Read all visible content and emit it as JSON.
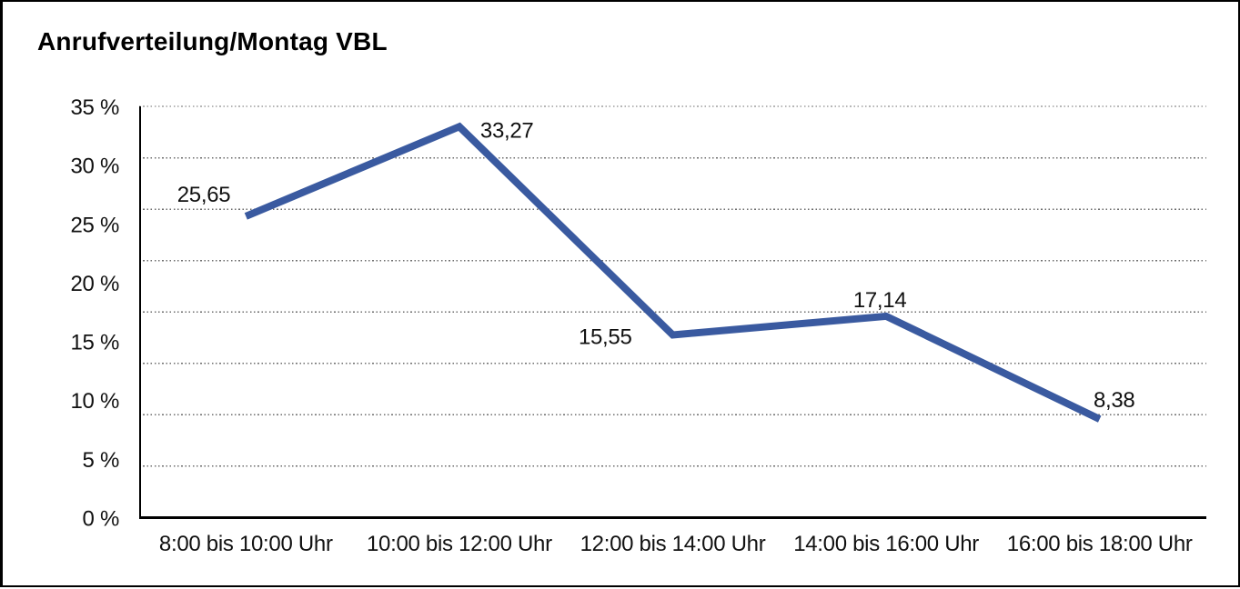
{
  "chart_data": {
    "type": "line",
    "title": "Anrufverteilung/Montag VBL",
    "categories": [
      "8:00 bis 10:00 Uhr",
      "10:00 bis 12:00 Uhr",
      "12:00 bis 14:00 Uhr",
      "14:00 bis 16:00 Uhr",
      "16:00 bis 18:00 Uhr"
    ],
    "series": [
      {
        "name": "Montag VBL",
        "values": [
          25.65,
          33.27,
          15.55,
          17.14,
          8.38
        ],
        "value_labels": [
          "25,65",
          "33,27",
          "15,55",
          "17,14",
          "8,38"
        ]
      }
    ],
    "xlabel": "",
    "ylabel": "",
    "ylim": [
      0,
      35
    ],
    "ytick_step": 5,
    "ytick_labels": [
      "0 %",
      "5 %",
      "10 %",
      "15 %",
      "20 %",
      "25 %",
      "30 %",
      "35 %"
    ],
    "grid": "horizontal-dotted",
    "gridline_intervals": 8,
    "legend": "none",
    "colors": {
      "line": "#3A5AA0",
      "gridline": "#6e6e6e",
      "axis": "#000000",
      "text": "#111111",
      "background": "#ffffff",
      "frame_border": "#000000"
    }
  }
}
